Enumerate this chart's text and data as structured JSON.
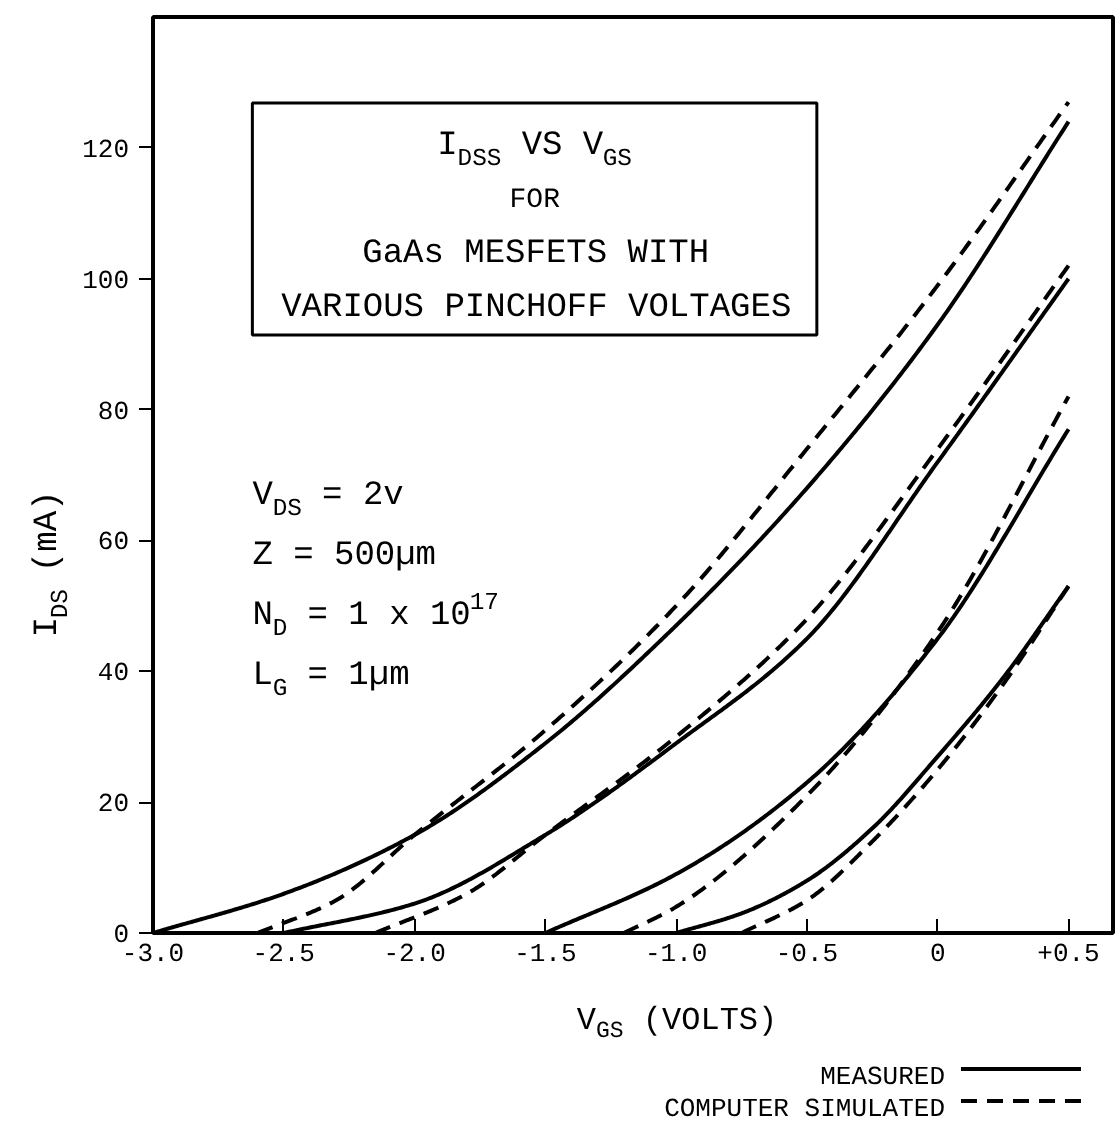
{
  "chart_data": {
    "type": "line",
    "title": "I$_{DSS}$ VS V$_{GS}$\nFOR\nGaAs MESFETS WITH\nVARIOUS PINCHOFF VOLTAGES",
    "xlabel": "V$_{GS}$ (VOLTS)",
    "ylabel": "I$_{DS}$ (mA)",
    "annotations": [
      "V$_{DS}$ = 2v",
      "Z  = 500µm",
      "N$_{D}$ = 1 x 10$^{17}$",
      "L$_{G}$ = 1µm"
    ],
    "xlim": [
      -3.0,
      0.67
    ],
    "ylim": [
      0,
      140
    ],
    "xticks": [
      {
        "value": -3.0,
        "label": "-3.0"
      },
      {
        "value": -2.5,
        "label": "-2.5"
      },
      {
        "value": -2.0,
        "label": "-2.0"
      },
      {
        "value": -1.5,
        "label": "-1.5"
      },
      {
        "value": -1.0,
        "label": "-1.0"
      },
      {
        "value": -0.5,
        "label": "-0.5"
      },
      0,
      {
        "value": 0.5,
        "label": "+0.5"
      }
    ],
    "yticks": [
      0,
      20,
      40,
      60,
      80,
      100,
      120
    ],
    "grid": false,
    "legend": "bottom right",
    "series": [
      {
        "name": "MEASURED",
        "color": "#000000",
        "line_style": "solid",
        "x": [
          -3.0,
          -2.5,
          -2.0,
          -1.5,
          -1.0,
          -0.5,
          0,
          0.5
        ],
        "values": [
          0,
          6,
          15,
          29,
          47,
          68,
          93,
          124
        ]
      },
      {
        "name": "COMPUTER SIMULATED",
        "color": "#000000",
        "line_style": "dashed",
        "x": [
          -2.6,
          -2.3,
          -2.0,
          -1.5,
          -1.0,
          -0.5,
          0,
          0.5
        ],
        "values": [
          0,
          5,
          15,
          31,
          50,
          74,
          99,
          127
        ]
      },
      {
        "color": "#000000",
        "line_style": "solid",
        "x": [
          -2.5,
          -2.0,
          -1.5,
          -1.0,
          -0.5,
          0,
          0.5
        ],
        "values": [
          0,
          4.5,
          15,
          29,
          45,
          72,
          100
        ]
      },
      {
        "color": "#000000",
        "line_style": "dashed",
        "x": [
          -2.15,
          -1.8,
          -1.5,
          -1.0,
          -0.5,
          0,
          0.5
        ],
        "values": [
          0,
          6,
          15,
          30,
          48,
          74,
          102
        ]
      },
      {
        "color": "#000000",
        "line_style": "solid",
        "x": [
          -1.5,
          -1.0,
          -0.5,
          0,
          0.5
        ],
        "values": [
          0,
          9,
          23,
          45,
          77
        ]
      },
      {
        "color": "#000000",
        "line_style": "dashed",
        "x": [
          -1.2,
          -1.0,
          -0.5,
          0,
          0.5
        ],
        "values": [
          0,
          4,
          21,
          46,
          82
        ]
      },
      {
        "color": "#000000",
        "line_style": "solid",
        "x": [
          -1.0,
          -0.75,
          -0.5,
          -0.25,
          0,
          0.25,
          0.5
        ],
        "values": [
          0,
          3,
          8,
          16,
          27,
          39,
          53
        ]
      },
      {
        "color": "#000000",
        "line_style": "dashed",
        "x": [
          -0.75,
          -0.5,
          -0.25,
          0,
          0.25,
          0.5
        ],
        "values": [
          0,
          5,
          14,
          25,
          38,
          53
        ]
      }
    ]
  }
}
